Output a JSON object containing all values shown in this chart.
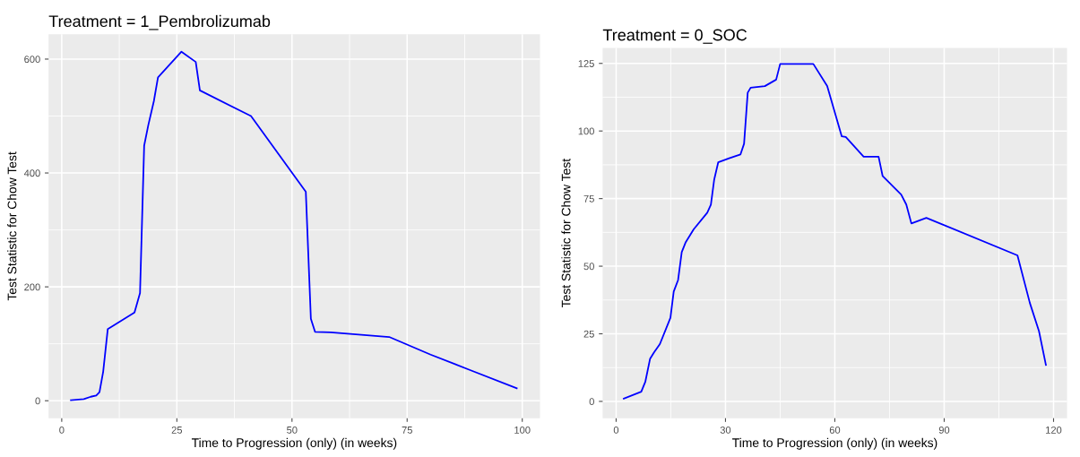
{
  "chart_data": [
    {
      "type": "line",
      "title": "Treatment = 1_Pembrolizumab",
      "xlabel": "Time to Progression (only) (in weeks)",
      "ylabel": "Test Statistic for Chow Test",
      "grid": true,
      "marker": "none",
      "line_style": "solid",
      "xlim": [
        -2.85,
        103.85
      ],
      "ylim": [
        -30.6,
        643.6
      ],
      "xticks": [
        0,
        25,
        50,
        75,
        100
      ],
      "yticks": [
        0,
        200,
        400,
        600
      ],
      "series": [
        {
          "color": "#0000ff",
          "x": [
            2.0,
            4.8,
            6.3,
            7.5,
            8.2,
            9,
            10,
            15.8,
            17,
            17.9,
            18.8,
            20,
            20.9,
            26,
            29.1,
            30,
            41.1,
            53,
            54.1,
            55,
            58.4,
            71.1,
            80.1,
            88.3,
            98.8
          ],
          "values": [
            1,
            3,
            7,
            9,
            15,
            51,
            126,
            155,
            189,
            448,
            484,
            526,
            568,
            613,
            595,
            545,
            500,
            367,
            144,
            121,
            120,
            112,
            81,
            55,
            22
          ]
        }
      ]
    },
    {
      "type": "line",
      "title": "Treatment = 0_SOC",
      "xlabel": "Time to Progression (only) (in weeks)",
      "ylabel": "Test Statistic for Chow Test",
      "grid": true,
      "marker": "none",
      "line_style": "solid",
      "xlim": [
        -3.7,
        123.7
      ],
      "ylim": [
        -6.2,
        130.7
      ],
      "xticks": [
        0,
        30,
        60,
        90,
        120
      ],
      "yticks": [
        0,
        25,
        50,
        75,
        100,
        125
      ],
      "series": [
        {
          "color": "#0000ff",
          "x": [
            2.1,
            6.9,
            8.0,
            9.3,
            10.4,
            12.0,
            14.9,
            15.8,
            17.0,
            18.0,
            19.1,
            21.3,
            25,
            26,
            26.9,
            28,
            31,
            34.1,
            35.1,
            36.1,
            36.9,
            40.8,
            43.9,
            45.0,
            54.1,
            57.9,
            61.9,
            63,
            67.9,
            72,
            73.1,
            78.2,
            79.6,
            81,
            85.1,
            110.1,
            113.5,
            116,
            117.9
          ],
          "values": [
            1.0,
            3.6,
            7.2,
            15.7,
            18.1,
            21.2,
            30.9,
            40.6,
            44.9,
            55.2,
            58.9,
            63.7,
            69.8,
            72.8,
            82,
            88.4,
            89.9,
            91.3,
            95.3,
            114.2,
            116,
            116.6,
            119,
            124.8,
            124.8,
            116.6,
            98,
            97.8,
            90.5,
            90.5,
            83.4,
            76.5,
            72.8,
            65.8,
            67.9,
            54,
            36.4,
            26,
            13.5
          ]
        }
      ]
    }
  ]
}
